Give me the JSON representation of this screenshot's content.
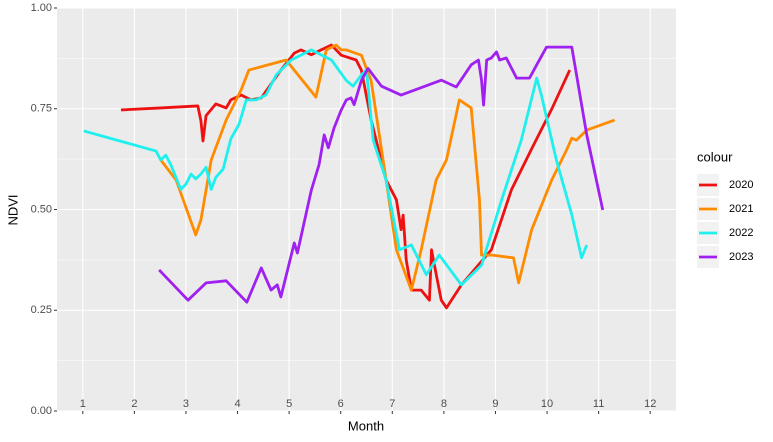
{
  "chart_data": {
    "type": "line",
    "xlabel": "Month",
    "ylabel": "NDVI",
    "legend_title": "colour",
    "legend_position": "right",
    "grid": true,
    "xlim": [
      0.5,
      12.5
    ],
    "xticks": [
      1,
      2,
      3,
      4,
      5,
      6,
      7,
      8,
      9,
      10,
      11,
      12
    ],
    "ylim": [
      0,
      1
    ],
    "yticks": [
      {
        "value": 0,
        "label": "0.00"
      },
      {
        "value": 0.25,
        "label": "0.25"
      },
      {
        "value": 0.5,
        "label": "0.50"
      },
      {
        "value": 0.75,
        "label": "0.75"
      },
      {
        "value": 1,
        "label": "1.00"
      }
    ],
    "series": [
      {
        "name": "2020",
        "color": "#ee1111",
        "x": [
          1.74,
          2.51,
          3.23,
          3.29,
          3.33,
          3.39,
          3.58,
          3.78,
          3.87,
          4.07,
          4.26,
          4.46,
          4.84,
          5.1,
          5.23,
          5.43,
          5.62,
          5.82,
          6.01,
          6.3,
          6.4,
          6.59,
          6.88,
          7.08,
          7.17,
          7.21,
          7.27,
          7.37,
          7.56,
          7.72,
          7.76,
          7.85,
          7.95,
          8.05,
          8.34,
          8.92,
          9.31,
          9.7,
          10.09,
          10.44
        ],
        "values": [
          0.747,
          0.752,
          0.757,
          0.72,
          0.67,
          0.733,
          0.762,
          0.752,
          0.772,
          0.784,
          0.772,
          0.777,
          0.846,
          0.888,
          0.896,
          0.884,
          0.896,
          0.908,
          0.883,
          0.871,
          0.846,
          0.722,
          0.573,
          0.524,
          0.45,
          0.486,
          0.375,
          0.3,
          0.3,
          0.275,
          0.4,
          0.34,
          0.275,
          0.256,
          0.313,
          0.4,
          0.549,
          0.65,
          0.749,
          0.846
        ]
      },
      {
        "name": "2021",
        "color": "#ff8c00",
        "x": [
          2.51,
          2.81,
          3.19,
          3.29,
          3.49,
          3.78,
          4.07,
          4.22,
          4.94,
          5.52,
          5.72,
          5.91,
          6.01,
          6.11,
          6.4,
          6.59,
          6.88,
          7.08,
          7.37,
          7.56,
          7.85,
          8.05,
          8.3,
          8.53,
          8.69,
          8.73,
          8.92,
          9.35,
          9.45,
          9.7,
          10.09,
          10.38,
          10.48,
          10.57,
          10.77,
          11.31
        ],
        "values": [
          0.623,
          0.573,
          0.437,
          0.474,
          0.623,
          0.722,
          0.797,
          0.846,
          0.871,
          0.779,
          0.896,
          0.908,
          0.896,
          0.896,
          0.883,
          0.82,
          0.573,
          0.4,
          0.3,
          0.4,
          0.573,
          0.623,
          0.772,
          0.752,
          0.524,
          0.387,
          0.387,
          0.38,
          0.318,
          0.449,
          0.573,
          0.648,
          0.677,
          0.672,
          0.697,
          0.722
        ]
      },
      {
        "name": "2022",
        "color": "#1ff0ee",
        "x": [
          1.02,
          2.42,
          2.51,
          2.61,
          2.71,
          2.9,
          3.0,
          3.1,
          3.19,
          3.29,
          3.39,
          3.49,
          3.58,
          3.72,
          3.87,
          4.03,
          4.17,
          4.36,
          4.55,
          4.75,
          5.04,
          5.43,
          5.82,
          6.11,
          6.24,
          6.4,
          6.5,
          6.63,
          6.88,
          7.14,
          7.37,
          7.66,
          7.91,
          8.34,
          8.73,
          9.12,
          9.5,
          9.8,
          9.89,
          10.18,
          10.48,
          10.67,
          10.77
        ],
        "values": [
          0.695,
          0.645,
          0.623,
          0.635,
          0.61,
          0.55,
          0.563,
          0.588,
          0.576,
          0.588,
          0.605,
          0.55,
          0.58,
          0.6,
          0.675,
          0.712,
          0.772,
          0.772,
          0.784,
          0.834,
          0.871,
          0.896,
          0.871,
          0.82,
          0.806,
          0.834,
          0.846,
          0.672,
          0.573,
          0.4,
          0.412,
          0.338,
          0.387,
          0.313,
          0.362,
          0.524,
          0.672,
          0.826,
          0.784,
          0.623,
          0.487,
          0.38,
          0.412
        ]
      },
      {
        "name": "2023",
        "color": "#a020f0",
        "x": [
          2.48,
          3.04,
          3.39,
          3.78,
          4.18,
          4.46,
          4.65,
          4.77,
          4.84,
          5.1,
          5.16,
          5.43,
          5.58,
          5.68,
          5.76,
          5.87,
          6.01,
          6.11,
          6.2,
          6.26,
          6.4,
          6.53,
          6.79,
          7.17,
          7.95,
          8.24,
          8.53,
          8.67,
          8.73,
          8.77,
          8.83,
          8.92,
          9.02,
          9.08,
          9.21,
          9.41,
          9.66,
          9.8,
          9.99,
          10.38,
          10.48,
          10.77,
          11.08
        ],
        "values": [
          0.35,
          0.275,
          0.318,
          0.323,
          0.27,
          0.355,
          0.3,
          0.313,
          0.283,
          0.417,
          0.392,
          0.548,
          0.611,
          0.685,
          0.653,
          0.702,
          0.747,
          0.772,
          0.777,
          0.76,
          0.82,
          0.85,
          0.806,
          0.784,
          0.821,
          0.804,
          0.859,
          0.871,
          0.821,
          0.759,
          0.871,
          0.876,
          0.891,
          0.871,
          0.876,
          0.826,
          0.826,
          0.859,
          0.903,
          0.903,
          0.903,
          0.685,
          0.499
        ]
      }
    ]
  }
}
